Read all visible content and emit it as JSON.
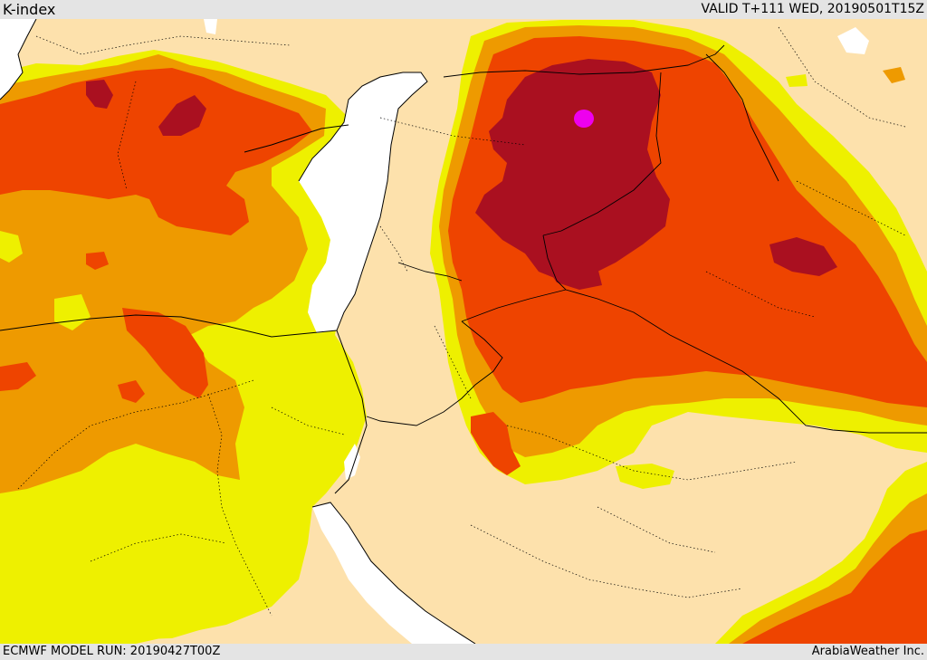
{
  "header": {
    "title": "K-index",
    "valid_time": "VALID T+111 WED, 20190501T15Z"
  },
  "footer": {
    "model_run": "ECMWF MODEL RUN: 20190427T00Z",
    "credit": "ArabiaWeather Inc."
  },
  "colors": {
    "background_land": "#fde1ac",
    "sea": "#ffffff",
    "level_yellow": "#eef000",
    "level_orange": "#ee9a00",
    "level_red": "#ee4400",
    "level_darkred": "#aa1020",
    "level_magenta": "#ee00ee",
    "border_line": "#000000"
  }
}
